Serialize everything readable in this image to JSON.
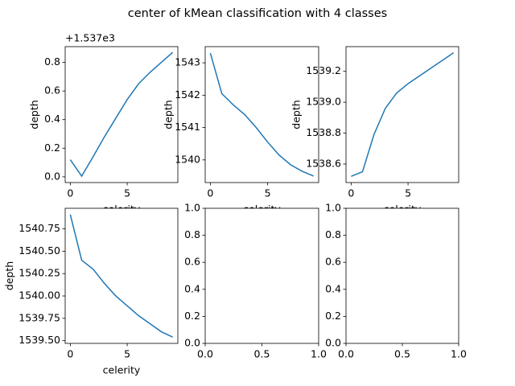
{
  "title": "center of kMean classification with 4 classes",
  "chart_data": [
    {
      "type": "line",
      "x": [
        0,
        1,
        2,
        3,
        4,
        5,
        6,
        7,
        8,
        9
      ],
      "values": [
        0.12,
        0.005,
        0.14,
        0.28,
        0.41,
        0.54,
        0.65,
        0.73,
        0.8,
        0.87
      ],
      "color": "#1f77b4",
      "xlim": [
        -0.45,
        9.45
      ],
      "xticks": [
        0,
        5
      ],
      "ylim": [
        -0.04,
        0.91
      ],
      "yticks": [
        {
          "value": 0,
          "label": "0.0"
        },
        {
          "value": 0.2,
          "label": "0.2"
        },
        {
          "value": 0.4,
          "label": "0.4"
        },
        {
          "value": 0.6,
          "label": "0.6"
        },
        {
          "value": 0.8,
          "label": "0.8"
        }
      ],
      "y_offset_label": "+1.537e3",
      "xlabel": "celerity",
      "ylabel": "depth"
    },
    {
      "type": "line",
      "x": [
        0,
        1,
        2,
        3,
        4,
        5,
        6,
        7,
        8,
        9
      ],
      "values": [
        1543.3,
        1542.05,
        1541.7,
        1541.4,
        1541.0,
        1540.55,
        1540.15,
        1539.85,
        1539.65,
        1539.5
      ],
      "color": "#1f77b4",
      "xlim": [
        -0.45,
        9.45
      ],
      "xticks": [
        0,
        5
      ],
      "ylim": [
        1539.3,
        1543.5
      ],
      "yticks": [
        1540,
        1541,
        1542,
        1543
      ],
      "xlabel": "celerity",
      "ylabel": "depth"
    },
    {
      "type": "line",
      "x": [
        0,
        1,
        2,
        3,
        4,
        5,
        6,
        7,
        8,
        9
      ],
      "values": [
        1538.52,
        1538.55,
        1538.79,
        1538.96,
        1539.06,
        1539.12,
        1539.17,
        1539.22,
        1539.27,
        1539.32
      ],
      "color": "#1f77b4",
      "xlim": [
        -0.45,
        9.45
      ],
      "xticks": [
        0,
        5
      ],
      "ylim": [
        1538.48,
        1539.36
      ],
      "yticks": [
        1538.6,
        1538.8,
        {
          "value": 1539,
          "label": "1539.0"
        },
        1539.2
      ],
      "xlabel": "celerity",
      "ylabel": "depth"
    },
    {
      "type": "line",
      "x": [
        0,
        1,
        2,
        3,
        4,
        5,
        6,
        7,
        8,
        9
      ],
      "values": [
        1540.91,
        1540.4,
        1540.3,
        1540.14,
        1540.0,
        1539.89,
        1539.78,
        1539.69,
        1539.6,
        1539.54
      ],
      "color": "#1f77b4",
      "xlim": [
        -0.45,
        9.45
      ],
      "xticks": [
        0,
        5
      ],
      "ylim": [
        1539.47,
        1540.98
      ],
      "yticks": [
        {
          "value": 1539.5,
          "label": "1539.50"
        },
        {
          "value": 1539.75,
          "label": "1539.75"
        },
        {
          "value": 1540,
          "label": "1540.00"
        },
        {
          "value": 1540.25,
          "label": "1540.25"
        },
        {
          "value": 1540.5,
          "label": "1540.50"
        },
        {
          "value": 1540.75,
          "label": "1540.75"
        }
      ],
      "xlabel": "celerity",
      "ylabel": "depth"
    },
    {
      "type": "line",
      "xlim": [
        0,
        1
      ],
      "ylim": [
        0,
        1
      ],
      "xticks": [
        {
          "value": 0,
          "label": "0.0"
        },
        {
          "value": 0.5,
          "label": "0.5"
        },
        {
          "value": 1,
          "label": "1.0"
        }
      ],
      "yticks": [
        {
          "value": 0,
          "label": "0.0"
        },
        {
          "value": 0.2,
          "label": "0.2"
        },
        {
          "value": 0.4,
          "label": "0.4"
        },
        {
          "value": 0.6,
          "label": "0.6"
        },
        {
          "value": 0.8,
          "label": "0.8"
        },
        {
          "value": 1,
          "label": "1.0"
        }
      ]
    },
    {
      "type": "line",
      "xlim": [
        0,
        1
      ],
      "ylim": [
        0,
        1
      ],
      "xticks": [
        {
          "value": 0,
          "label": "0.0"
        },
        {
          "value": 0.5,
          "label": "0.5"
        },
        {
          "value": 1,
          "label": "1.0"
        }
      ],
      "yticks": [
        {
          "value": 0,
          "label": "0.0"
        },
        {
          "value": 0.2,
          "label": "0.2"
        },
        {
          "value": 0.4,
          "label": "0.4"
        },
        {
          "value": 0.6,
          "label": "0.6"
        },
        {
          "value": 0.8,
          "label": "0.8"
        },
        {
          "value": 1,
          "label": "1.0"
        }
      ]
    }
  ]
}
